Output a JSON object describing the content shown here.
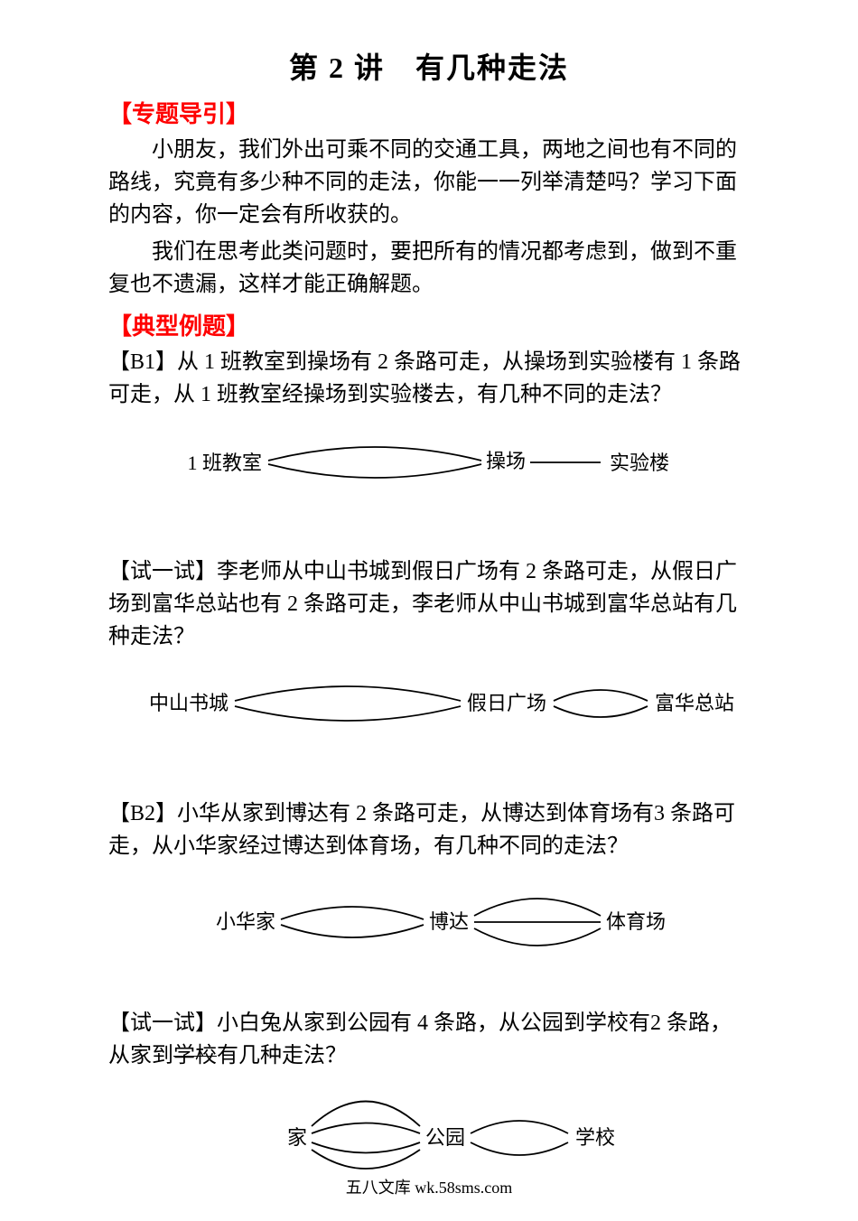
{
  "title": "第 2 讲　有几种走法",
  "section_intro_title": "【专题导引】",
  "intro_para1": "小朋友，我们外出可乘不同的交通工具，两地之间也有不同的路线，究竟有多少种不同的走法，你能一一列举清楚吗？学习下面的内容，你一定会有所收获的。",
  "intro_para2": "我们在思考此类问题时，要把所有的情况都考虑到，做到不重复也不遗漏，这样才能正确解题。",
  "section_examples_title": "【典型例题】",
  "b1": {
    "text": "【B1】从 1 班教室到操场有 2 条路可走，从操场到实验楼有 1 条路可走，从 1 班教室经操场到实验楼去，有几种不同的走法？",
    "diagram": {
      "nodes": [
        "1 班教室",
        "操场",
        "实验楼"
      ],
      "paths_ab": 2,
      "paths_bc": 1,
      "stroke": "#000000",
      "stroke_width": 1.8,
      "fontsize": 22
    }
  },
  "try1": {
    "text": "【试一试】李老师从中山书城到假日广场有 2 条路可走，从假日广场到富华总站也有 2 条路可走，李老师从中山书城到富华总站有几种走法？",
    "diagram": {
      "nodes": [
        "中山书城",
        "假日广场",
        "富华总站"
      ],
      "paths_ab": 2,
      "paths_bc": 2,
      "stroke": "#000000",
      "stroke_width": 1.8,
      "fontsize": 22
    }
  },
  "b2": {
    "text": "【B2】小华从家到博达有 2 条路可走，从博达到体育场有3 条路可走，从小华家经过博达到体育场，有几种不同的走法？",
    "diagram": {
      "nodes": [
        "小华家",
        "博达",
        "体育场"
      ],
      "paths_ab": 2,
      "paths_bc": 3,
      "stroke": "#000000",
      "stroke_width": 1.8,
      "fontsize": 22
    }
  },
  "try2": {
    "text": "【试一试】小白兔从家到公园有 4 条路，从公园到学校有2 条路，从家到学校有几种走法？",
    "diagram": {
      "nodes": [
        "家",
        "公园",
        "学校"
      ],
      "paths_ab": 4,
      "paths_bc": 2,
      "stroke": "#000000",
      "stroke_width": 1.8,
      "fontsize": 22
    }
  },
  "underline_phrase": "学校",
  "footer": "五八文库 wk.58sms.com"
}
